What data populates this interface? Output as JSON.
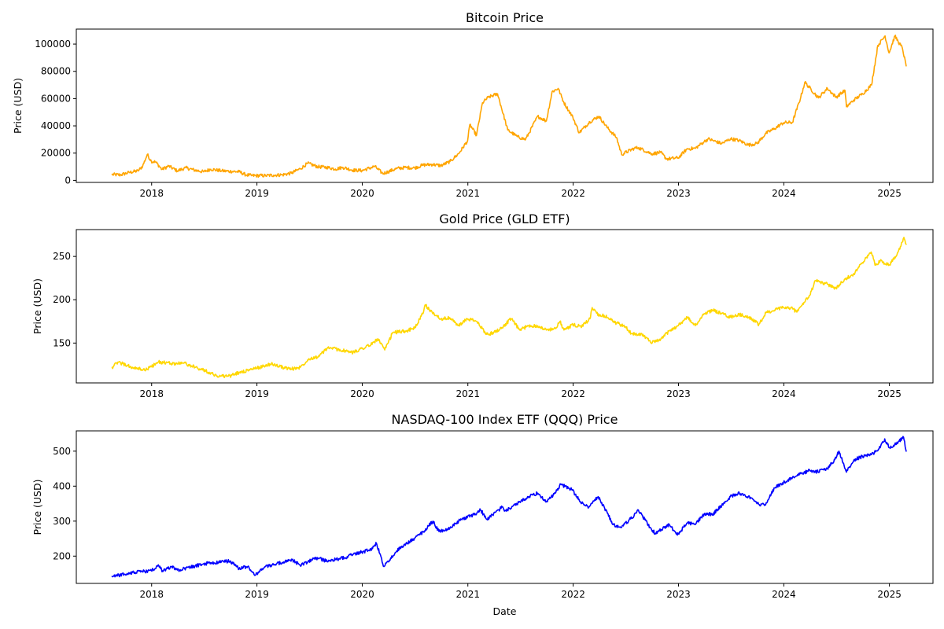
{
  "chart_data": [
    {
      "type": "line",
      "title": "Bitcoin Price",
      "xlabel": "",
      "ylabel": "Price (USD)",
      "xlim": [
        "2017-04-15",
        "2025-06-01"
      ],
      "ylim": [
        -1500,
        111000
      ],
      "x_ticks": [
        "2018",
        "2019",
        "2020",
        "2021",
        "2022",
        "2023",
        "2024",
        "2025"
      ],
      "y_ticks": [
        0,
        20000,
        40000,
        60000,
        80000,
        100000
      ],
      "color": "#FFA500",
      "grid": false,
      "series": [
        {
          "x": [
            "2017-08-17",
            "2017-09-15",
            "2017-10-15",
            "2017-11-15",
            "2017-12-01",
            "2017-12-17",
            "2017-12-31",
            "2018-01-15",
            "2018-02-06",
            "2018-03-01",
            "2018-03-31",
            "2018-04-30",
            "2018-05-31",
            "2018-06-30",
            "2018-07-25",
            "2018-08-31",
            "2018-09-30",
            "2018-10-31",
            "2018-11-25",
            "2018-12-15",
            "2019-01-31",
            "2019-02-28",
            "2019-03-31",
            "2019-04-30",
            "2019-05-31",
            "2019-06-26",
            "2019-07-31",
            "2019-08-31",
            "2019-09-30",
            "2019-10-26",
            "2019-11-30",
            "2019-12-31",
            "2020-01-31",
            "2020-02-13",
            "2020-03-12",
            "2020-03-31",
            "2020-04-30",
            "2020-05-31",
            "2020-06-30",
            "2020-07-31",
            "2020-08-31",
            "2020-09-30",
            "2020-10-31",
            "2020-11-30",
            "2020-12-31",
            "2021-01-08",
            "2021-01-31",
            "2021-02-21",
            "2021-03-13",
            "2021-04-14",
            "2021-05-19",
            "2021-06-22",
            "2021-07-20",
            "2021-08-31",
            "2021-09-30",
            "2021-10-20",
            "2021-11-10",
            "2021-11-30",
            "2021-12-31",
            "2022-01-22",
            "2022-02-28",
            "2022-03-31",
            "2022-04-30",
            "2022-05-31",
            "2022-06-18",
            "2022-07-31",
            "2022-08-15",
            "2022-09-30",
            "2022-10-31",
            "2022-11-21",
            "2022-12-31",
            "2023-01-31",
            "2023-02-28",
            "2023-03-31",
            "2023-04-14",
            "2023-05-31",
            "2023-06-30",
            "2023-07-31",
            "2023-08-31",
            "2023-09-30",
            "2023-10-31",
            "2023-11-30",
            "2023-12-31",
            "2024-01-31",
            "2024-02-29",
            "2024-03-14",
            "2024-04-30",
            "2024-05-31",
            "2024-06-30",
            "2024-07-31",
            "2024-08-05",
            "2024-08-31",
            "2024-09-30",
            "2024-10-31",
            "2024-11-22",
            "2024-12-17",
            "2024-12-31",
            "2025-01-20",
            "2025-01-31",
            "2025-02-15",
            "2025-02-28"
          ],
          "y": [
            4300,
            4000,
            5800,
            7000,
            10500,
            19000,
            14000,
            13500,
            8000,
            10500,
            7000,
            9200,
            7500,
            6300,
            8200,
            7000,
            6600,
            6300,
            4000,
            3500,
            3500,
            3800,
            4100,
            5300,
            8500,
            12500,
            10000,
            9600,
            8300,
            9500,
            7500,
            7200,
            9300,
            10300,
            5000,
            6400,
            8700,
            9450,
            9100,
            11300,
            11700,
            10800,
            13800,
            19600,
            29000,
            41000,
            33000,
            57000,
            61000,
            63500,
            37000,
            32000,
            30000,
            47000,
            43500,
            65000,
            67500,
            57000,
            46300,
            35000,
            43000,
            47000,
            38500,
            31500,
            19000,
            23500,
            24000,
            19500,
            20500,
            15700,
            16500,
            23100,
            23500,
            28400,
            30400,
            27000,
            30500,
            29200,
            26000,
            27000,
            34500,
            38000,
            42300,
            42500,
            61200,
            72000,
            60500,
            67500,
            61000,
            66000,
            54000,
            59000,
            63500,
            70000,
            99000,
            106000,
            93500,
            106000,
            102000,
            97000,
            84000
          ]
        }
      ]
    },
    {
      "type": "line",
      "title": "Gold Price (GLD ETF)",
      "xlabel": "",
      "ylabel": "Price (USD)",
      "xlim": [
        "2017-04-15",
        "2025-06-01"
      ],
      "ylim": [
        104,
        281
      ],
      "x_ticks": [
        "2018",
        "2019",
        "2020",
        "2021",
        "2022",
        "2023",
        "2024",
        "2025"
      ],
      "y_ticks": [
        150,
        200,
        250
      ],
      "color": "#FFD700",
      "grid": false,
      "series": [
        {
          "x": [
            "2017-08-17",
            "2017-09-08",
            "2017-10-31",
            "2017-12-12",
            "2018-01-25",
            "2018-03-31",
            "2018-04-15",
            "2018-05-31",
            "2018-06-30",
            "2018-08-16",
            "2018-09-30",
            "2018-10-31",
            "2018-12-31",
            "2019-02-20",
            "2019-03-31",
            "2019-04-30",
            "2019-05-31",
            "2019-06-30",
            "2019-07-31",
            "2019-08-31",
            "2019-09-04",
            "2019-10-31",
            "2019-11-30",
            "2019-12-31",
            "2020-01-31",
            "2020-02-24",
            "2020-03-19",
            "2020-03-31",
            "2020-04-15",
            "2020-05-31",
            "2020-06-30",
            "2020-07-31",
            "2020-08-06",
            "2020-08-31",
            "2020-09-30",
            "2020-10-31",
            "2020-11-30",
            "2020-12-31",
            "2021-01-31",
            "2021-03-08",
            "2021-03-31",
            "2021-04-30",
            "2021-05-31",
            "2021-06-30",
            "2021-07-31",
            "2021-08-31",
            "2021-09-30",
            "2021-10-31",
            "2021-11-16",
            "2021-11-30",
            "2021-12-31",
            "2022-01-31",
            "2022-02-28",
            "2022-03-08",
            "2022-03-31",
            "2022-04-18",
            "2022-05-31",
            "2022-06-30",
            "2022-07-21",
            "2022-08-31",
            "2022-09-28",
            "2022-10-31",
            "2022-11-30",
            "2022-12-31",
            "2023-01-31",
            "2023-02-28",
            "2023-03-31",
            "2023-04-30",
            "2023-05-31",
            "2023-06-30",
            "2023-07-31",
            "2023-08-31",
            "2023-09-30",
            "2023-10-05",
            "2023-10-31",
            "2023-11-30",
            "2023-12-31",
            "2024-01-31",
            "2024-02-14",
            "2024-03-31",
            "2024-04-19",
            "2024-05-31",
            "2024-06-30",
            "2024-07-31",
            "2024-08-31",
            "2024-09-30",
            "2024-10-30",
            "2024-11-14",
            "2024-11-30",
            "2024-12-31",
            "2025-01-31",
            "2025-02-20",
            "2025-02-28"
          ],
          "y": [
            122,
            128,
            121,
            119,
            128,
            126,
            128,
            122,
            119,
            112,
            112,
            116,
            121,
            126,
            122,
            120,
            122,
            132,
            134,
            143,
            145,
            141,
            139,
            144,
            148,
            155,
            142,
            150,
            162,
            164,
            167,
            185,
            194,
            185,
            178,
            179,
            170,
            178,
            175,
            160,
            162,
            168,
            178,
            165,
            170,
            170,
            165,
            167,
            175,
            165,
            171,
            169,
            178,
            191,
            181,
            182,
            173,
            169,
            161,
            160,
            150,
            154,
            164,
            170,
            180,
            170,
            184,
            188,
            184,
            180,
            183,
            180,
            174,
            170,
            185,
            188,
            191,
            190,
            186,
            205,
            222,
            218,
            213,
            224,
            230,
            243,
            255,
            240,
            245,
            240,
            255,
            272,
            264
          ]
        }
      ]
    },
    {
      "type": "line",
      "title": "NASDAQ-100 Index ETF (QQQ) Price",
      "xlabel": "Date",
      "ylabel": "Price (USD)",
      "xlim": [
        "2017-04-15",
        "2025-06-01"
      ],
      "ylim": [
        122,
        558
      ],
      "x_ticks": [
        "2018",
        "2019",
        "2020",
        "2021",
        "2022",
        "2023",
        "2024",
        "2025"
      ],
      "y_ticks": [
        200,
        300,
        400,
        500
      ],
      "color": "#0000FF",
      "grid": false,
      "series": [
        {
          "x": [
            "2017-08-17",
            "2017-09-30",
            "2017-10-31",
            "2017-11-30",
            "2017-12-31",
            "2018-01-26",
            "2018-02-08",
            "2018-03-12",
            "2018-03-31",
            "2018-05-31",
            "2018-06-30",
            "2018-07-31",
            "2018-08-31",
            "2018-09-30",
            "2018-10-31",
            "2018-11-30",
            "2018-12-24",
            "2019-01-31",
            "2019-03-31",
            "2019-05-03",
            "2019-05-31",
            "2019-07-26",
            "2019-08-31",
            "2019-09-30",
            "2019-10-31",
            "2019-11-30",
            "2019-12-31",
            "2020-01-31",
            "2020-02-19",
            "2020-03-16",
            "2020-04-30",
            "2020-05-31",
            "2020-06-30",
            "2020-07-31",
            "2020-09-02",
            "2020-09-23",
            "2020-10-31",
            "2020-11-30",
            "2020-12-31",
            "2021-01-31",
            "2021-02-12",
            "2021-03-08",
            "2021-04-30",
            "2021-05-12",
            "2021-06-30",
            "2021-07-31",
            "2021-08-31",
            "2021-09-30",
            "2021-10-31",
            "2021-11-19",
            "2021-12-27",
            "2022-01-27",
            "2022-02-24",
            "2022-03-29",
            "2022-05-20",
            "2022-06-16",
            "2022-07-31",
            "2022-08-15",
            "2022-09-30",
            "2022-10-13",
            "2022-11-30",
            "2022-12-28",
            "2023-01-31",
            "2023-02-28",
            "2023-03-31",
            "2023-04-30",
            "2023-05-31",
            "2023-06-30",
            "2023-07-31",
            "2023-08-31",
            "2023-09-30",
            "2023-10-26",
            "2023-11-30",
            "2023-12-31",
            "2024-01-31",
            "2024-02-29",
            "2024-03-31",
            "2024-04-19",
            "2024-05-31",
            "2024-06-30",
            "2024-07-10",
            "2024-08-05",
            "2024-08-31",
            "2024-09-30",
            "2024-10-31",
            "2024-11-30",
            "2024-12-16",
            "2024-12-31",
            "2025-01-31",
            "2025-02-19",
            "2025-02-28"
          ],
          "y": [
            142,
            148,
            154,
            156,
            158,
            172,
            158,
            170,
            160,
            171,
            178,
            180,
            184,
            186,
            164,
            170,
            145,
            170,
            182,
            190,
            173,
            195,
            186,
            190,
            195,
            205,
            212,
            218,
            237,
            170,
            215,
            235,
            250,
            270,
            300,
            270,
            280,
            300,
            313,
            320,
            335,
            305,
            340,
            330,
            355,
            370,
            380,
            355,
            380,
            405,
            390,
            355,
            340,
            370,
            290,
            282,
            315,
            332,
            275,
            265,
            290,
            260,
            295,
            290,
            320,
            320,
            345,
            370,
            380,
            370,
            350,
            345,
            395,
            410,
            425,
            435,
            445,
            440,
            450,
            480,
            500,
            440,
            475,
            485,
            490,
            510,
            535,
            510,
            525,
            540,
            500
          ]
        }
      ]
    }
  ]
}
